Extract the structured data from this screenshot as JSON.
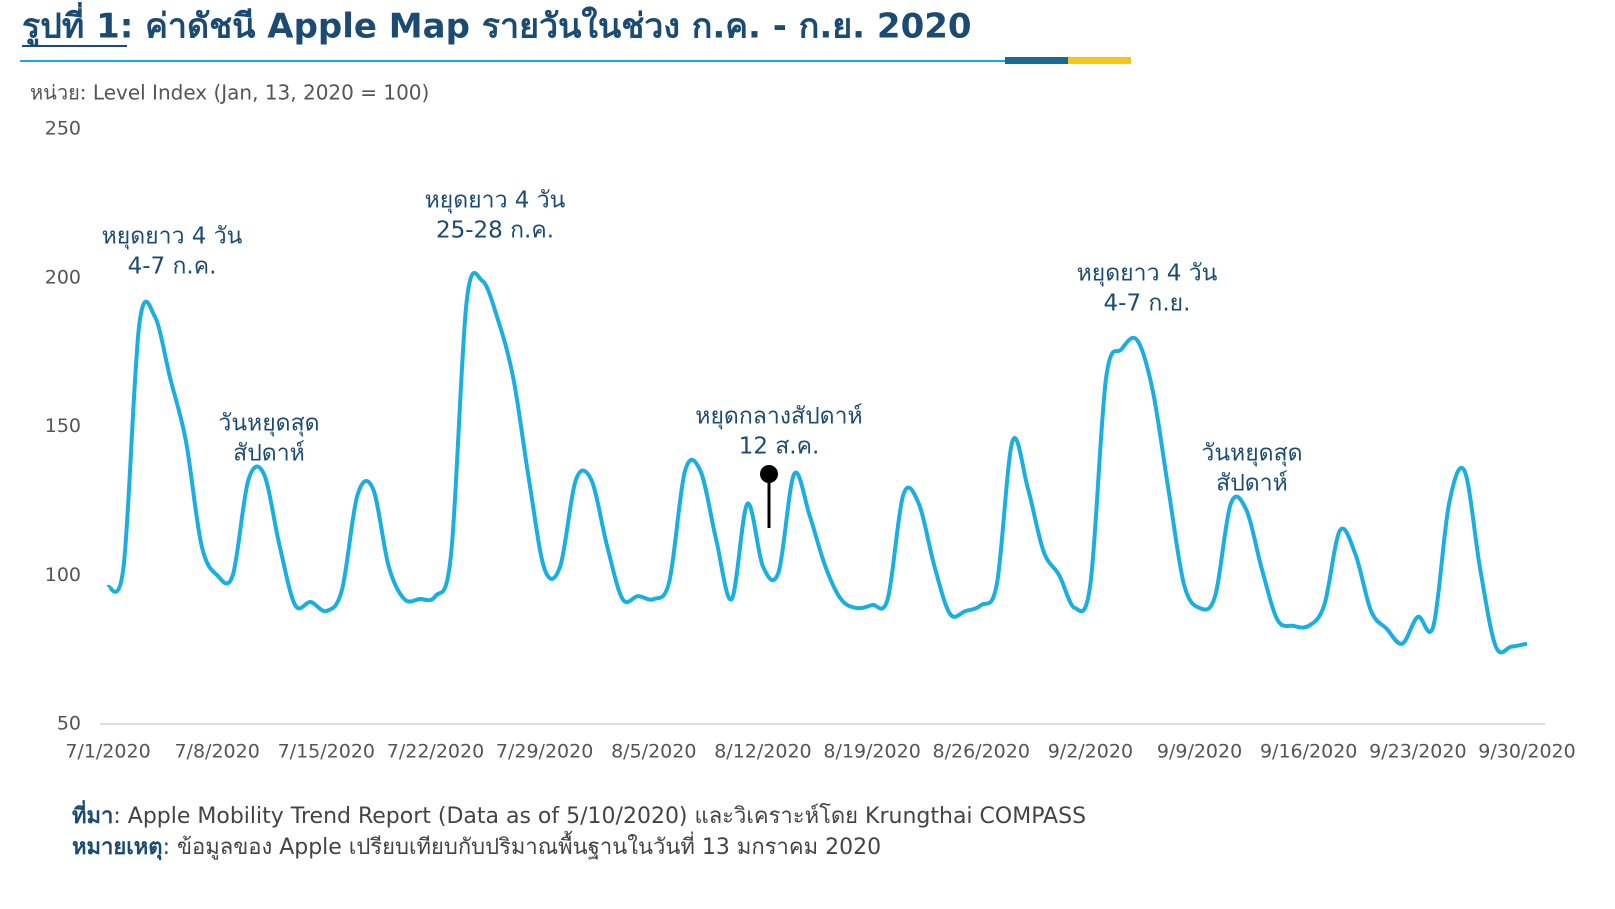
{
  "chart_data": {
    "type": "line",
    "title": "รูปที่ 1: ค่าดัชนี Apple Map รายวันในช่วง ก.ค. - ก.ย. 2020",
    "y_label": "หน่วย: Level Index (Jan, 13, 2020 = 100)",
    "categories": [
      "7/1/2020",
      null,
      null,
      null,
      null,
      null,
      null,
      "7/8/2020",
      null,
      null,
      null,
      null,
      null,
      null,
      "7/15/2020",
      null,
      null,
      null,
      null,
      null,
      null,
      "7/22/2020",
      null,
      null,
      null,
      null,
      null,
      null,
      "7/29/2020",
      null,
      null,
      null,
      null,
      null,
      null,
      "8/5/2020",
      null,
      null,
      null,
      null,
      null,
      null,
      "8/12/2020",
      null,
      null,
      null,
      null,
      null,
      null,
      "8/19/2020",
      null,
      null,
      null,
      null,
      null,
      null,
      "8/26/2020",
      null,
      null,
      null,
      null,
      null,
      null,
      "9/2/2020",
      null,
      null,
      null,
      null,
      null,
      null,
      "9/9/2020",
      null,
      null,
      null,
      null,
      null,
      null,
      "9/16/2020",
      null,
      null,
      null,
      null,
      null,
      null,
      "9/23/2020",
      null,
      null,
      null,
      null,
      null,
      null,
      "9/30/2020"
    ],
    "series": [
      {
        "name": "Apple Map",
        "color": "#1aaee3",
        "values": [
          96,
          103,
          184,
          187,
          166,
          145,
          110,
          100,
          100,
          132,
          134,
          110,
          90,
          91,
          88,
          95,
          127,
          129,
          103,
          92,
          92,
          93,
          107,
          192,
          199,
          186,
          166,
          132,
          102,
          103,
          132,
          132,
          110,
          92,
          93,
          92,
          98,
          135,
          135,
          112,
          92,
          124,
          103,
          101,
          134,
          120,
          103,
          92,
          89,
          90,
          92,
          127,
          124,
          103,
          87,
          88,
          90,
          97,
          145,
          129,
          108,
          100,
          89,
          97,
          166,
          176,
          179,
          162,
          129,
          97,
          89,
          93,
          124,
          122,
          102,
          85,
          83,
          83,
          90,
          115,
          107,
          88,
          82,
          77,
          86,
          83,
          124,
          135,
          102,
          76,
          76,
          77
        ]
      }
    ],
    "ylim": [
      50,
      250
    ],
    "yticks": [
      50,
      100,
      150,
      200,
      250
    ],
    "annotations": [
      {
        "lines": [
          "หยุดยาว 4 วัน",
          "4-7 ก.ค."
        ]
      },
      {
        "lines": [
          "วันหยุดสุด",
          "สัปดาห์"
        ]
      },
      {
        "lines": [
          "หยุดยาว 4 วัน",
          "25-28 ก.ค."
        ]
      },
      {
        "lines": [
          "หยุดยาว 4 วัน",
          "4-7 ก.ย."
        ]
      },
      {
        "lines": [
          "หยุดกลางสัปดาห์",
          "12 ส.ค."
        ]
      },
      {
        "lines": [
          "วันหยุดสุด",
          "สัปดาห์"
        ]
      }
    ]
  },
  "source": {
    "label": "ที่มา",
    "text": ": Apple Mobility Trend Report (Data as of 5/10/2020) และวิเคราะห์โดย Krungthai COMPASS"
  },
  "note": {
    "label": "หมายเหตุ",
    "text": ": ข้อมูลของ Apple เปรียบเทียบกับปริมาณพื้นฐานในวันที่ 13 มกราคม 2020"
  }
}
